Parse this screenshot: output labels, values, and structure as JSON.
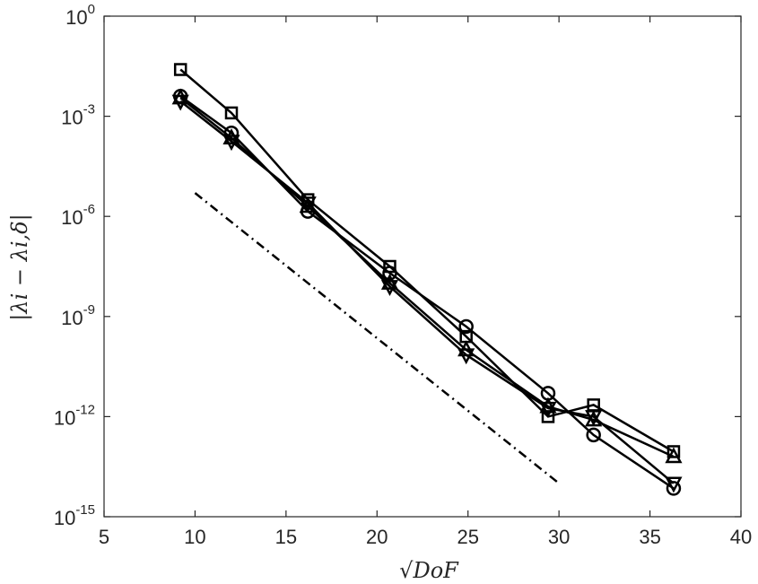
{
  "chart_data": {
    "type": "line",
    "xlabel": "√DoF",
    "ylabel": "|λi − λi,δ|",
    "xlim": [
      5,
      40
    ],
    "ylim_log10": [
      -15,
      0
    ],
    "y_scale": "log",
    "grid": false,
    "x_ticks": [
      "5",
      "10",
      "15",
      "20",
      "25",
      "30",
      "35",
      "40"
    ],
    "y_ticks": [
      {
        "base": "10",
        "exp": "0"
      },
      {
        "base": "10",
        "exp": "-3"
      },
      {
        "base": "10",
        "exp": "-6"
      },
      {
        "base": "10",
        "exp": "-9"
      },
      {
        "base": "10",
        "exp": "-12"
      },
      {
        "base": "10",
        "exp": "-15"
      }
    ],
    "x": [
      9.2,
      12.0,
      16.2,
      20.7,
      24.9,
      29.4,
      31.9,
      36.3
    ],
    "series": [
      {
        "marker": "square",
        "log10_values": [
          -1.6,
          -2.9,
          -5.5,
          -7.5,
          -9.6,
          -12.0,
          -11.65,
          -13.05
        ]
      },
      {
        "marker": "circle",
        "log10_values": [
          -2.4,
          -3.5,
          -5.85,
          -7.7,
          -9.3,
          -11.3,
          -12.55,
          -14.15
        ]
      },
      {
        "marker": "triangle-up",
        "log10_values": [
          -2.45,
          -3.65,
          -5.7,
          -8.0,
          -10.0,
          -11.7,
          -12.1,
          -13.2
        ]
      },
      {
        "marker": "triangle-down",
        "log10_values": [
          -2.55,
          -3.75,
          -5.6,
          -8.1,
          -10.15,
          -11.75,
          -12.0,
          -14.0
        ]
      }
    ],
    "reference_line": {
      "style": "dash-dot",
      "x": [
        10.0,
        30.0
      ],
      "log10_values": [
        -5.3,
        -14.0
      ]
    }
  }
}
